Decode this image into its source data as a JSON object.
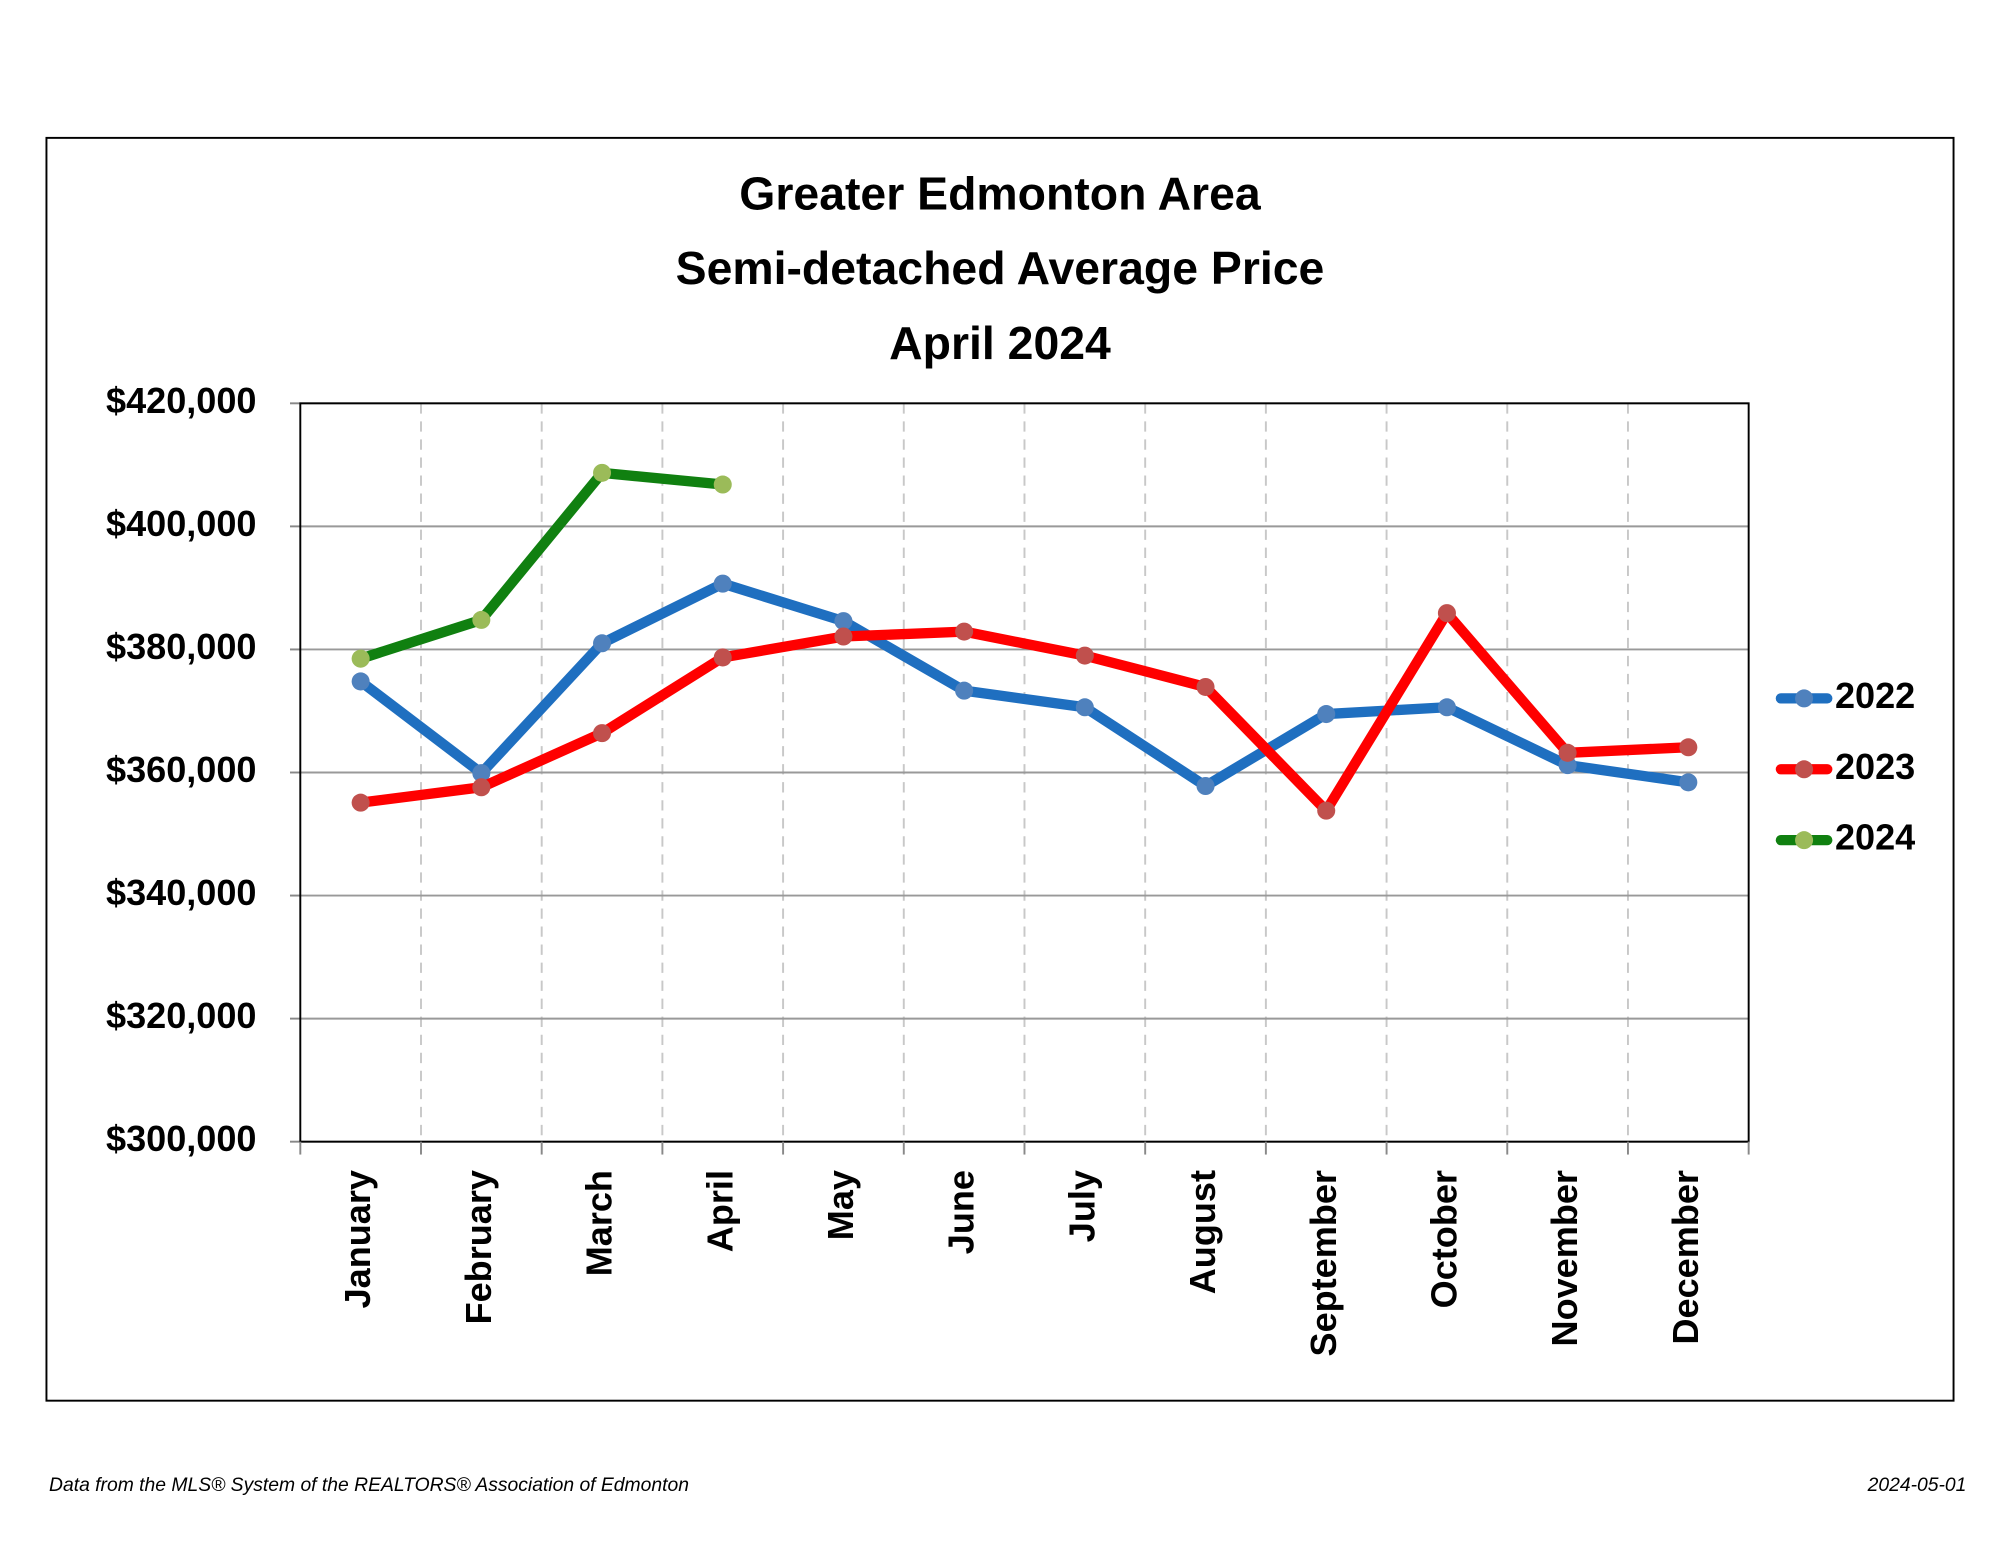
{
  "chart_data": {
    "type": "line",
    "title": [
      "Greater Edmonton Area",
      "Semi-detached Average Price",
      "April 2024"
    ],
    "categories": [
      "January",
      "February",
      "March",
      "April",
      "May",
      "June",
      "July",
      "August",
      "September",
      "October",
      "November",
      "December"
    ],
    "series": [
      {
        "name": "2022",
        "color": "#1f6fc0",
        "marker_color": "#4f81bd",
        "values": [
          374800,
          359900,
          381000,
          390700,
          384600,
          373300,
          370600,
          357800,
          369500,
          370600,
          361200,
          358400
        ]
      },
      {
        "name": "2023",
        "color": "#ff0000",
        "marker_color": "#c0504d",
        "values": [
          355100,
          357600,
          366400,
          378700,
          382100,
          382900,
          379000,
          373900,
          353800,
          385900,
          363200,
          364100
        ]
      },
      {
        "name": "2024",
        "color": "#108010",
        "marker_color": "#9bbb59",
        "values": [
          378500,
          384800,
          408700,
          406800,
          null,
          null,
          null,
          null,
          null,
          null,
          null,
          null
        ]
      }
    ],
    "ylim": [
      300000,
      420000
    ],
    "yticks": [
      {
        "value": 300000,
        "label": "$300,000"
      },
      {
        "value": 320000,
        "label": "$320,000"
      },
      {
        "value": 340000,
        "label": "$340,000"
      },
      {
        "value": 360000,
        "label": "$360,000"
      },
      {
        "value": 380000,
        "label": "$380,000"
      },
      {
        "value": 400000,
        "label": "$400,000"
      },
      {
        "value": 420000,
        "label": "$420,000"
      }
    ],
    "grid": true,
    "legend": "right",
    "footnote": "Data from the MLS® System of the REALTORS® Association of Edmonton",
    "date": "2024-05-01"
  }
}
